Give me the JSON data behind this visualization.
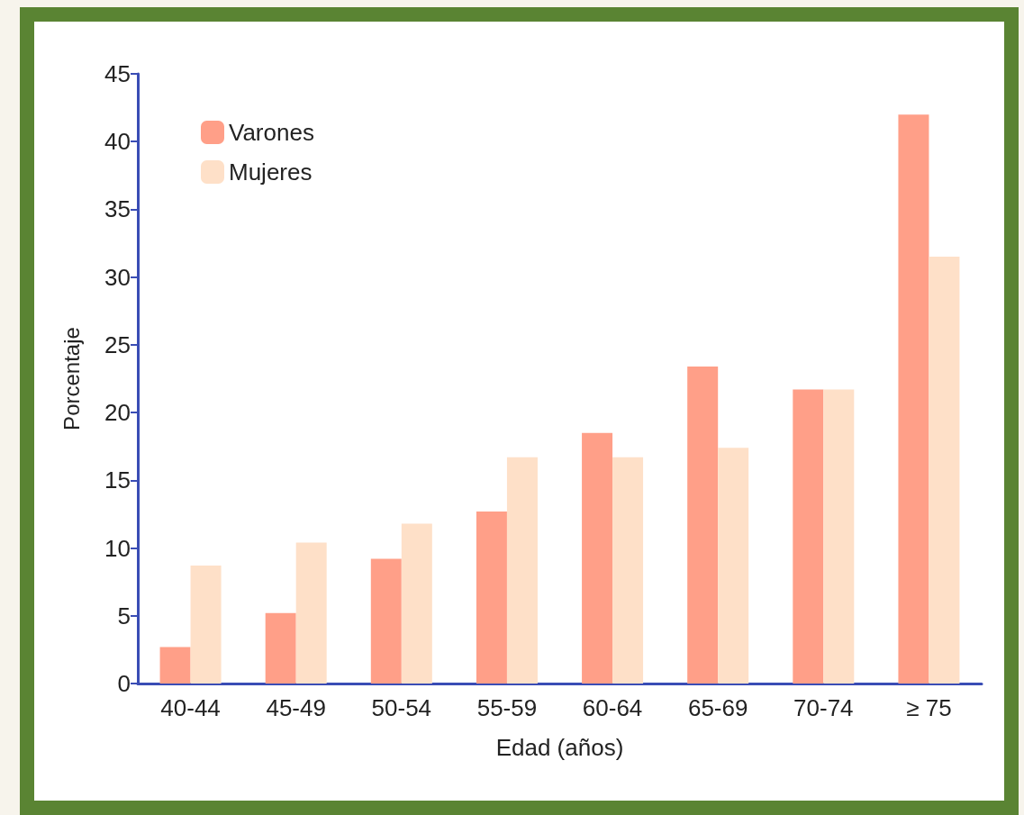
{
  "chart_data": {
    "type": "bar",
    "xlabel": "Edad (años)",
    "ylabel": "Porcentaje",
    "categories": [
      "40-44",
      "45-49",
      "50-54",
      "55-59",
      "60-64",
      "65-69",
      "70-74",
      "≥ 75"
    ],
    "series": [
      {
        "name": "Varones",
        "color": "#ff9f88",
        "values": [
          2.7,
          5.2,
          9.2,
          12.7,
          18.5,
          23.4,
          21.7,
          42.0
        ]
      },
      {
        "name": "Mujeres",
        "color": "#fee0c8",
        "values": [
          8.7,
          10.4,
          11.8,
          16.7,
          16.7,
          17.4,
          21.7,
          31.5
        ]
      }
    ],
    "ylim": [
      0,
      45
    ],
    "yticks": [
      0,
      5,
      10,
      15,
      20,
      25,
      30,
      35,
      40,
      45
    ],
    "grid": false,
    "legend": "top left"
  }
}
